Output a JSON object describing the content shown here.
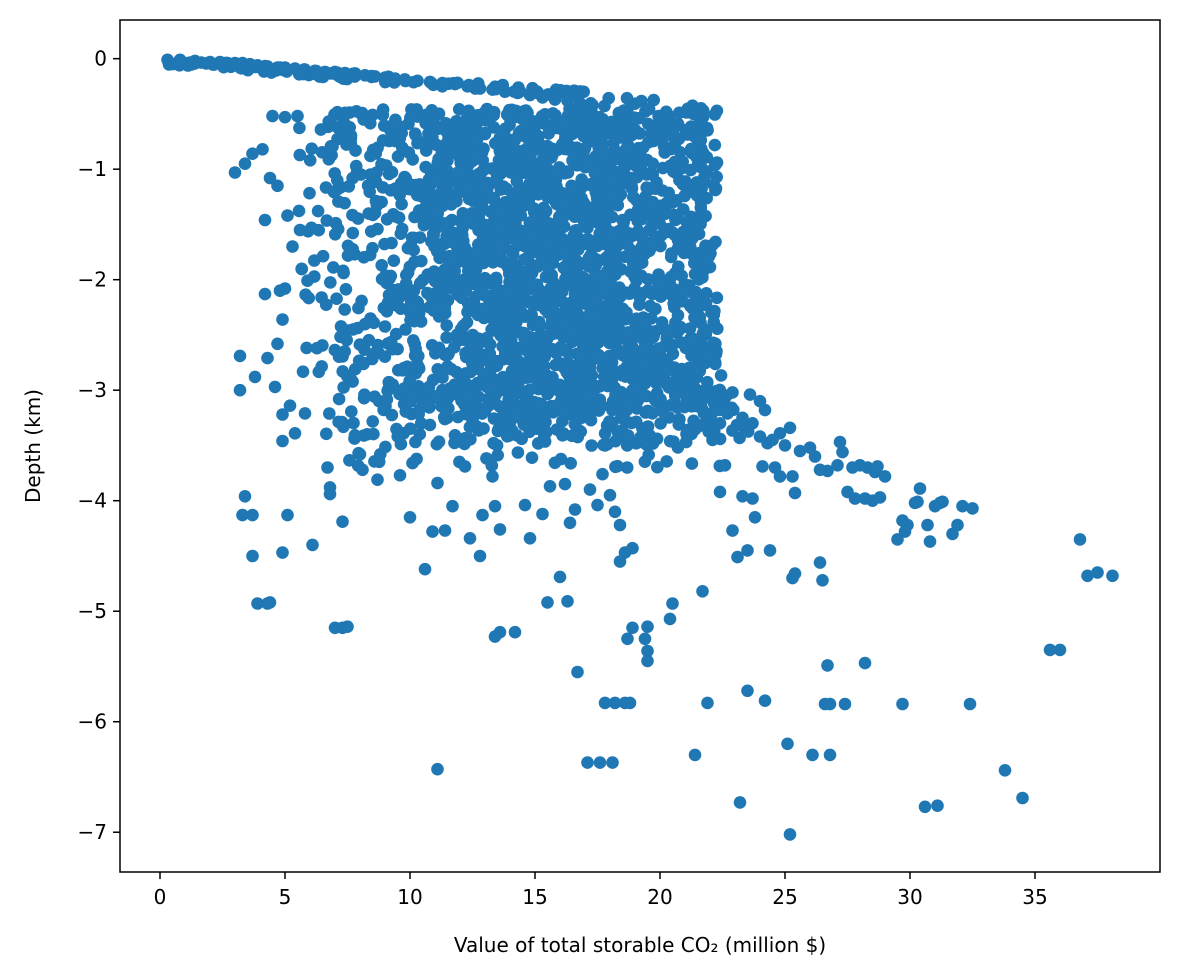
{
  "chart_data": {
    "type": "scatter",
    "title": "",
    "xlabel": "Value of total storable CO₂ (million $)",
    "ylabel": "Depth (km)",
    "xlim": [
      -1.6,
      40
    ],
    "ylim": [
      -7.36,
      0.35
    ],
    "x_ticks": [
      0,
      5,
      10,
      15,
      20,
      25,
      30,
      35
    ],
    "y_ticks": [
      0,
      -1,
      -2,
      -3,
      -4,
      -5,
      -6,
      -7
    ],
    "x_tick_labels": [
      "0",
      "5",
      "10",
      "15",
      "20",
      "25",
      "30",
      "35"
    ],
    "y_tick_labels": [
      "0",
      "−1",
      "−2",
      "−3",
      "−4",
      "−5",
      "−6",
      "−7"
    ],
    "grid": false,
    "legend": "none",
    "marker_color": "#1f77b4",
    "dense_region_note_values": {
      "shallow_band": {
        "x": [
          0.2,
          22
        ],
        "y": [
          0.0,
          -0.3
        ]
      },
      "core_cluster": {
        "x": [
          5.5,
          22.5
        ],
        "y": [
          -0.4,
          -3.5
        ]
      }
    },
    "points": [
      [
        0.3,
        -0.01
      ],
      [
        0.8,
        -0.01
      ],
      [
        1.4,
        -0.02
      ],
      [
        2.0,
        -0.03
      ],
      [
        2.4,
        -0.03
      ],
      [
        2.7,
        -0.04
      ],
      [
        3.0,
        -0.04
      ],
      [
        3.3,
        -0.04
      ],
      [
        3.6,
        -0.05
      ],
      [
        3.9,
        -0.06
      ],
      [
        4.3,
        -0.07
      ],
      [
        4.7,
        -0.08
      ],
      [
        5.0,
        -0.08
      ],
      [
        5.4,
        -0.09
      ],
      [
        5.8,
        -0.1
      ],
      [
        6.2,
        -0.11
      ],
      [
        6.6,
        -0.12
      ],
      [
        7.0,
        -0.12
      ],
      [
        7.4,
        -0.13
      ],
      [
        7.8,
        -0.14
      ],
      [
        8.2,
        -0.15
      ],
      [
        8.6,
        -0.16
      ],
      [
        9.0,
        -0.17
      ],
      [
        9.4,
        -0.18
      ],
      [
        9.8,
        -0.19
      ],
      [
        10.3,
        -0.2
      ],
      [
        10.8,
        -0.21
      ],
      [
        11.3,
        -0.22
      ],
      [
        11.8,
        -0.23
      ],
      [
        12.3,
        -0.25
      ],
      [
        12.8,
        -0.27
      ],
      [
        13.3,
        -0.28
      ],
      [
        13.8,
        -0.3
      ],
      [
        14.3,
        -0.31
      ],
      [
        14.8,
        -0.33
      ],
      [
        15.3,
        -0.35
      ],
      [
        15.8,
        -0.37
      ],
      [
        16.3,
        -0.38
      ],
      [
        16.8,
        -0.4
      ],
      [
        17.3,
        -0.42
      ],
      [
        3.0,
        -1.03
      ],
      [
        3.4,
        -0.95
      ],
      [
        3.7,
        -0.86
      ],
      [
        4.1,
        -0.82
      ],
      [
        4.5,
        -0.52
      ],
      [
        5.0,
        -0.53
      ],
      [
        5.5,
        -0.52
      ],
      [
        4.2,
        -1.46
      ],
      [
        4.4,
        -1.08
      ],
      [
        4.7,
        -1.15
      ],
      [
        5.1,
        -1.42
      ],
      [
        5.3,
        -1.7
      ],
      [
        5.6,
        -1.55
      ],
      [
        4.2,
        -2.13
      ],
      [
        4.8,
        -2.1
      ],
      [
        5.0,
        -2.08
      ],
      [
        4.9,
        -2.36
      ],
      [
        4.7,
        -2.58
      ],
      [
        4.3,
        -2.71
      ],
      [
        3.8,
        -2.88
      ],
      [
        3.2,
        -2.69
      ],
      [
        3.2,
        -3.0
      ],
      [
        4.6,
        -2.97
      ],
      [
        4.9,
        -3.22
      ],
      [
        5.2,
        -3.14
      ],
      [
        5.4,
        -3.39
      ],
      [
        5.8,
        -3.21
      ],
      [
        4.9,
        -3.46
      ],
      [
        3.4,
        -3.96
      ],
      [
        3.3,
        -4.13
      ],
      [
        3.7,
        -4.13
      ],
      [
        3.7,
        -4.5
      ],
      [
        5.1,
        -4.13
      ],
      [
        4.9,
        -4.47
      ],
      [
        6.1,
        -4.4
      ],
      [
        3.9,
        -4.93
      ],
      [
        4.3,
        -4.93
      ],
      [
        4.4,
        -4.92
      ],
      [
        6.8,
        -3.94
      ],
      [
        6.7,
        -3.7
      ],
      [
        7.3,
        -4.19
      ],
      [
        6.8,
        -3.88
      ],
      [
        7.0,
        -5.15
      ],
      [
        7.3,
        -5.15
      ],
      [
        7.5,
        -5.14
      ],
      [
        8.1,
        -3.72
      ],
      [
        8.0,
        -3.58
      ],
      [
        8.7,
        -3.81
      ],
      [
        9.6,
        -3.77
      ],
      [
        10.1,
        -3.66
      ],
      [
        10.0,
        -4.15
      ],
      [
        10.6,
        -4.62
      ],
      [
        10.9,
        -4.28
      ],
      [
        11.4,
        -4.27
      ],
      [
        11.1,
        -3.84
      ],
      [
        11.7,
        -4.05
      ],
      [
        12.2,
        -3.69
      ],
      [
        12.4,
        -4.34
      ],
      [
        12.8,
        -4.5
      ],
      [
        12.9,
        -4.13
      ],
      [
        13.3,
        -3.78
      ],
      [
        13.4,
        -4.05
      ],
      [
        13.6,
        -4.26
      ],
      [
        13.4,
        -5.23
      ],
      [
        13.6,
        -5.19
      ],
      [
        14.2,
        -5.19
      ],
      [
        14.6,
        -4.04
      ],
      [
        14.8,
        -4.34
      ],
      [
        15.3,
        -4.12
      ],
      [
        15.6,
        -3.87
      ],
      [
        15.5,
        -4.92
      ],
      [
        16.0,
        -4.69
      ],
      [
        16.2,
        -3.85
      ],
      [
        16.4,
        -4.2
      ],
      [
        16.3,
        -4.91
      ],
      [
        16.6,
        -4.08
      ],
      [
        16.7,
        -5.55
      ],
      [
        17.2,
        -3.9
      ],
      [
        17.5,
        -4.04
      ],
      [
        17.7,
        -3.76
      ],
      [
        17.8,
        -3.5
      ],
      [
        18.0,
        -3.95
      ],
      [
        18.2,
        -4.1
      ],
      [
        18.4,
        -4.22
      ],
      [
        18.6,
        -4.47
      ],
      [
        18.9,
        -4.43
      ],
      [
        18.4,
        -4.55
      ],
      [
        17.8,
        -5.83
      ],
      [
        18.2,
        -5.83
      ],
      [
        18.6,
        -5.83
      ],
      [
        18.8,
        -5.83
      ],
      [
        18.7,
        -5.25
      ],
      [
        18.9,
        -5.15
      ],
      [
        19.4,
        -5.25
      ],
      [
        19.5,
        -5.14
      ],
      [
        19.5,
        -5.36
      ],
      [
        19.5,
        -5.45
      ],
      [
        20.4,
        -5.07
      ],
      [
        20.5,
        -4.93
      ],
      [
        21.7,
        -4.82
      ],
      [
        17.1,
        -6.37
      ],
      [
        17.6,
        -6.37
      ],
      [
        18.1,
        -6.37
      ],
      [
        11.1,
        -6.43
      ],
      [
        21.4,
        -6.3
      ],
      [
        21.9,
        -5.83
      ],
      [
        23.2,
        -6.73
      ],
      [
        23.5,
        -5.72
      ],
      [
        24.2,
        -5.81
      ],
      [
        25.1,
        -6.2
      ],
      [
        25.2,
        -7.02
      ],
      [
        26.1,
        -6.3
      ],
      [
        26.6,
        -5.84
      ],
      [
        26.8,
        -5.84
      ],
      [
        26.7,
        -5.49
      ],
      [
        26.8,
        -6.3
      ],
      [
        27.4,
        -5.84
      ],
      [
        28.2,
        -5.47
      ],
      [
        29.7,
        -5.84
      ],
      [
        32.4,
        -5.84
      ],
      [
        30.6,
        -6.77
      ],
      [
        31.1,
        -6.76
      ],
      [
        33.8,
        -6.44
      ],
      [
        34.5,
        -6.69
      ],
      [
        35.6,
        -5.35
      ],
      [
        36.0,
        -5.35
      ],
      [
        36.8,
        -4.35
      ],
      [
        37.1,
        -4.68
      ],
      [
        37.5,
        -4.65
      ],
      [
        38.1,
        -4.68
      ],
      [
        22.1,
        -3.45
      ],
      [
        22.4,
        -3.92
      ],
      [
        22.6,
        -3.68
      ],
      [
        22.9,
        -4.27
      ],
      [
        23.1,
        -4.51
      ],
      [
        23.3,
        -3.96
      ],
      [
        23.5,
        -4.45
      ],
      [
        23.7,
        -3.98
      ],
      [
        23.8,
        -4.15
      ],
      [
        24.4,
        -4.45
      ],
      [
        25.3,
        -4.7
      ],
      [
        25.4,
        -4.66
      ],
      [
        26.4,
        -4.56
      ],
      [
        26.5,
        -4.72
      ],
      [
        25.3,
        -3.78
      ],
      [
        25.4,
        -3.93
      ],
      [
        25.6,
        -3.55
      ],
      [
        24.8,
        -3.78
      ],
      [
        24.1,
        -3.69
      ],
      [
        24.6,
        -3.7
      ],
      [
        25.0,
        -3.5
      ],
      [
        24.3,
        -3.48
      ],
      [
        24.0,
        -3.1
      ],
      [
        24.2,
        -3.18
      ],
      [
        23.4,
        -3.35
      ],
      [
        24.5,
        -3.45
      ],
      [
        23.7,
        -3.3
      ],
      [
        24.0,
        -3.42
      ],
      [
        23.3,
        -3.25
      ],
      [
        22.9,
        -3.02
      ],
      [
        23.6,
        -3.04
      ],
      [
        22.7,
        -3.21
      ],
      [
        22.4,
        -3.3
      ],
      [
        21.9,
        -3.32
      ],
      [
        26.4,
        -3.72
      ],
      [
        26.7,
        -3.73
      ],
      [
        27.2,
        -3.47
      ],
      [
        27.3,
        -3.56
      ],
      [
        27.5,
        -3.92
      ],
      [
        27.8,
        -3.98
      ],
      [
        28.0,
        -3.68
      ],
      [
        28.2,
        -3.98
      ],
      [
        28.5,
        -4.0
      ],
      [
        28.3,
        -3.7
      ],
      [
        28.6,
        -3.74
      ],
      [
        29.0,
        -3.78
      ],
      [
        28.7,
        -3.69
      ],
      [
        29.7,
        -4.18
      ],
      [
        29.9,
        -4.22
      ],
      [
        30.2,
        -4.02
      ],
      [
        30.4,
        -3.89
      ],
      [
        30.3,
        -4.01
      ],
      [
        30.7,
        -4.22
      ],
      [
        31.0,
        -4.05
      ],
      [
        31.3,
        -4.01
      ],
      [
        30.8,
        -4.37
      ],
      [
        31.2,
        -4.02
      ],
      [
        31.7,
        -4.3
      ],
      [
        31.9,
        -4.22
      ],
      [
        32.1,
        -4.05
      ],
      [
        32.5,
        -4.07
      ],
      [
        29.5,
        -4.35
      ],
      [
        27.7,
        -3.7
      ],
      [
        27.1,
        -3.68
      ],
      [
        26.0,
        -3.52
      ],
      [
        25.2,
        -3.34
      ],
      [
        24.8,
        -3.39
      ],
      [
        26.2,
        -3.6
      ],
      [
        28.8,
        -3.97
      ],
      [
        29.8,
        -4.28
      ]
    ],
    "dense_points_seed": 20231120,
    "dense_points_count": 2600
  }
}
